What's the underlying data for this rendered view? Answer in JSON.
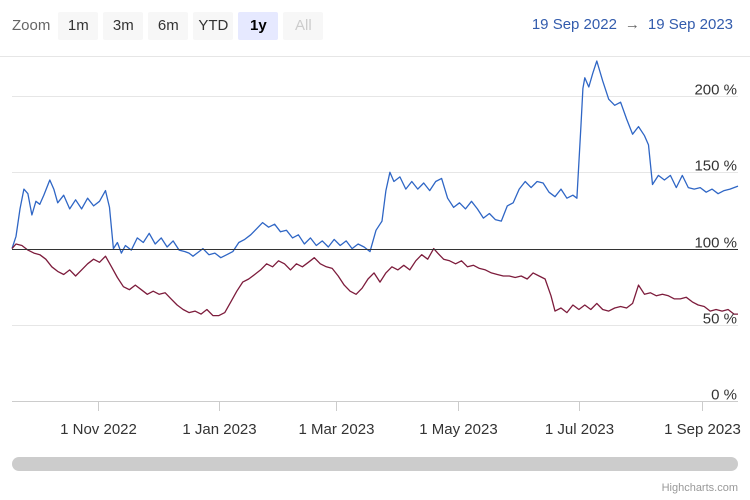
{
  "toolbar": {
    "zoom_label": "Zoom",
    "buttons": [
      {
        "label": "1m",
        "state": "normal"
      },
      {
        "label": "3m",
        "state": "normal"
      },
      {
        "label": "6m",
        "state": "normal"
      },
      {
        "label": "YTD",
        "state": "normal"
      },
      {
        "label": "1y",
        "state": "selected"
      },
      {
        "label": "All",
        "state": "disabled"
      }
    ]
  },
  "range": {
    "from": "19 Sep 2022",
    "arrow": "→",
    "to": "19 Sep 2023"
  },
  "credits": "Highcharts.com",
  "colors": {
    "series_blue": "#2f66c5",
    "series_red": "#7d1c3c",
    "grid": "#e6e6e6",
    "baseline": "#333333",
    "range_text": "#335cad"
  },
  "chart_data": {
    "type": "line",
    "y_unit": "%",
    "ylim": [
      0,
      225
    ],
    "y_ticks": [
      0,
      50,
      100,
      150,
      200
    ],
    "y_tick_labels": [
      "0 %",
      "50 %",
      "100 %",
      "150 %",
      "200 %"
    ],
    "baseline": 100,
    "xlim": [
      "2022-09-19",
      "2023-09-19"
    ],
    "x_ticks": [
      "2022-11-01",
      "2023-01-01",
      "2023-03-01",
      "2023-05-01",
      "2023-07-01",
      "2023-09-01"
    ],
    "x_tick_labels": [
      "1 Nov 2022",
      "1 Jan 2023",
      "1 Mar 2023",
      "1 May 2023",
      "1 Jul 2023",
      "1 Sep 2023"
    ],
    "grid": true,
    "legend": "none",
    "series": [
      {
        "color": "#2f66c5",
        "points": [
          [
            "2022-09-19",
            100
          ],
          [
            "2022-09-21",
            108
          ],
          [
            "2022-09-23",
            126
          ],
          [
            "2022-09-25",
            139
          ],
          [
            "2022-09-27",
            136
          ],
          [
            "2022-09-29",
            122
          ],
          [
            "2022-10-01",
            131
          ],
          [
            "2022-10-03",
            129
          ],
          [
            "2022-10-05",
            135
          ],
          [
            "2022-10-08",
            145
          ],
          [
            "2022-10-10",
            139
          ],
          [
            "2022-10-12",
            130
          ],
          [
            "2022-10-15",
            135
          ],
          [
            "2022-10-18",
            126
          ],
          [
            "2022-10-21",
            132
          ],
          [
            "2022-10-24",
            126
          ],
          [
            "2022-10-27",
            133
          ],
          [
            "2022-10-30",
            128
          ],
          [
            "2022-11-02",
            131
          ],
          [
            "2022-11-05",
            138
          ],
          [
            "2022-11-07",
            127
          ],
          [
            "2022-11-09",
            100
          ],
          [
            "2022-11-11",
            104
          ],
          [
            "2022-11-13",
            97
          ],
          [
            "2022-11-15",
            102
          ],
          [
            "2022-11-18",
            99
          ],
          [
            "2022-11-21",
            107
          ],
          [
            "2022-11-24",
            104
          ],
          [
            "2022-11-27",
            110
          ],
          [
            "2022-11-30",
            103
          ],
          [
            "2022-12-03",
            107
          ],
          [
            "2022-12-06",
            101
          ],
          [
            "2022-12-09",
            105
          ],
          [
            "2022-12-12",
            99
          ],
          [
            "2022-12-15",
            98
          ],
          [
            "2022-12-17",
            97
          ],
          [
            "2022-12-19",
            95
          ],
          [
            "2022-12-22",
            98
          ],
          [
            "2022-12-24",
            100
          ],
          [
            "2022-12-27",
            96
          ],
          [
            "2022-12-30",
            97
          ],
          [
            "2023-01-02",
            94
          ],
          [
            "2023-01-05",
            96
          ],
          [
            "2023-01-08",
            98
          ],
          [
            "2023-01-11",
            104
          ],
          [
            "2023-01-14",
            106
          ],
          [
            "2023-01-17",
            109
          ],
          [
            "2023-01-20",
            113
          ],
          [
            "2023-01-23",
            117
          ],
          [
            "2023-01-26",
            114
          ],
          [
            "2023-01-29",
            116
          ],
          [
            "2023-02-01",
            111
          ],
          [
            "2023-02-04",
            112
          ],
          [
            "2023-02-07",
            107
          ],
          [
            "2023-02-10",
            109
          ],
          [
            "2023-02-13",
            103
          ],
          [
            "2023-02-16",
            107
          ],
          [
            "2023-02-19",
            102
          ],
          [
            "2023-02-22",
            105
          ],
          [
            "2023-02-25",
            101
          ],
          [
            "2023-02-28",
            106
          ],
          [
            "2023-03-03",
            102
          ],
          [
            "2023-03-06",
            105
          ],
          [
            "2023-03-09",
            100
          ],
          [
            "2023-03-12",
            103
          ],
          [
            "2023-03-15",
            101
          ],
          [
            "2023-03-18",
            98
          ],
          [
            "2023-03-21",
            112
          ],
          [
            "2023-03-24",
            118
          ],
          [
            "2023-03-26",
            138
          ],
          [
            "2023-03-28",
            150
          ],
          [
            "2023-03-30",
            144
          ],
          [
            "2023-04-02",
            147
          ],
          [
            "2023-04-05",
            139
          ],
          [
            "2023-04-08",
            144
          ],
          [
            "2023-04-11",
            139
          ],
          [
            "2023-04-14",
            143
          ],
          [
            "2023-04-17",
            138
          ],
          [
            "2023-04-20",
            144
          ],
          [
            "2023-04-23",
            146
          ],
          [
            "2023-04-26",
            133
          ],
          [
            "2023-04-29",
            127
          ],
          [
            "2023-05-02",
            130
          ],
          [
            "2023-05-05",
            126
          ],
          [
            "2023-05-08",
            131
          ],
          [
            "2023-05-11",
            126
          ],
          [
            "2023-05-14",
            120
          ],
          [
            "2023-05-17",
            123
          ],
          [
            "2023-05-20",
            119
          ],
          [
            "2023-05-23",
            118
          ],
          [
            "2023-05-26",
            128
          ],
          [
            "2023-05-29",
            130
          ],
          [
            "2023-06-01",
            139
          ],
          [
            "2023-06-04",
            144
          ],
          [
            "2023-06-07",
            140
          ],
          [
            "2023-06-10",
            144
          ],
          [
            "2023-06-13",
            143
          ],
          [
            "2023-06-16",
            137
          ],
          [
            "2023-06-19",
            134
          ],
          [
            "2023-06-22",
            139
          ],
          [
            "2023-06-25",
            133
          ],
          [
            "2023-06-28",
            135
          ],
          [
            "2023-06-30",
            133
          ],
          [
            "2023-07-02",
            180
          ],
          [
            "2023-07-03",
            205
          ],
          [
            "2023-07-04",
            212
          ],
          [
            "2023-07-06",
            206
          ],
          [
            "2023-07-08",
            215
          ],
          [
            "2023-07-10",
            223
          ],
          [
            "2023-07-13",
            210
          ],
          [
            "2023-07-16",
            198
          ],
          [
            "2023-07-19",
            194
          ],
          [
            "2023-07-22",
            196
          ],
          [
            "2023-07-25",
            185
          ],
          [
            "2023-07-28",
            175
          ],
          [
            "2023-07-31",
            180
          ],
          [
            "2023-08-03",
            174
          ],
          [
            "2023-08-05",
            168
          ],
          [
            "2023-08-07",
            142
          ],
          [
            "2023-08-10",
            148
          ],
          [
            "2023-08-13",
            145
          ],
          [
            "2023-08-16",
            148
          ],
          [
            "2023-08-19",
            140
          ],
          [
            "2023-08-22",
            148
          ],
          [
            "2023-08-25",
            140
          ],
          [
            "2023-08-28",
            139
          ],
          [
            "2023-08-31",
            140
          ],
          [
            "2023-09-03",
            137
          ],
          [
            "2023-09-06",
            139
          ],
          [
            "2023-09-09",
            136
          ],
          [
            "2023-09-12",
            138
          ],
          [
            "2023-09-15",
            139
          ],
          [
            "2023-09-19",
            141
          ]
        ]
      },
      {
        "color": "#7d1c3c",
        "points": [
          [
            "2022-09-19",
            100
          ],
          [
            "2022-09-21",
            103
          ],
          [
            "2022-09-24",
            102
          ],
          [
            "2022-09-27",
            99
          ],
          [
            "2022-09-30",
            97
          ],
          [
            "2022-10-03",
            96
          ],
          [
            "2022-10-06",
            93
          ],
          [
            "2022-10-09",
            88
          ],
          [
            "2022-10-12",
            85
          ],
          [
            "2022-10-15",
            83
          ],
          [
            "2022-10-18",
            86
          ],
          [
            "2022-10-21",
            82
          ],
          [
            "2022-10-24",
            86
          ],
          [
            "2022-10-27",
            90
          ],
          [
            "2022-10-30",
            93
          ],
          [
            "2022-11-02",
            91
          ],
          [
            "2022-11-05",
            95
          ],
          [
            "2022-11-08",
            88
          ],
          [
            "2022-11-11",
            81
          ],
          [
            "2022-11-14",
            75
          ],
          [
            "2022-11-17",
            73
          ],
          [
            "2022-11-20",
            76
          ],
          [
            "2022-11-23",
            73
          ],
          [
            "2022-11-26",
            70
          ],
          [
            "2022-11-29",
            72
          ],
          [
            "2022-12-02",
            70
          ],
          [
            "2022-12-05",
            71
          ],
          [
            "2022-12-08",
            67
          ],
          [
            "2022-12-11",
            63
          ],
          [
            "2022-12-14",
            60
          ],
          [
            "2022-12-17",
            58
          ],
          [
            "2022-12-20",
            59
          ],
          [
            "2022-12-23",
            57
          ],
          [
            "2022-12-26",
            60
          ],
          [
            "2022-12-29",
            56
          ],
          [
            "2023-01-01",
            56
          ],
          [
            "2023-01-04",
            58
          ],
          [
            "2023-01-07",
            65
          ],
          [
            "2023-01-10",
            72
          ],
          [
            "2023-01-13",
            78
          ],
          [
            "2023-01-16",
            80
          ],
          [
            "2023-01-19",
            83
          ],
          [
            "2023-01-22",
            86
          ],
          [
            "2023-01-25",
            90
          ],
          [
            "2023-01-28",
            88
          ],
          [
            "2023-01-31",
            92
          ],
          [
            "2023-02-03",
            90
          ],
          [
            "2023-02-06",
            86
          ],
          [
            "2023-02-09",
            90
          ],
          [
            "2023-02-12",
            88
          ],
          [
            "2023-02-15",
            91
          ],
          [
            "2023-02-18",
            94
          ],
          [
            "2023-02-21",
            90
          ],
          [
            "2023-02-24",
            88
          ],
          [
            "2023-02-27",
            87
          ],
          [
            "2023-03-02",
            82
          ],
          [
            "2023-03-05",
            76
          ],
          [
            "2023-03-08",
            72
          ],
          [
            "2023-03-11",
            70
          ],
          [
            "2023-03-14",
            74
          ],
          [
            "2023-03-17",
            80
          ],
          [
            "2023-03-20",
            84
          ],
          [
            "2023-03-23",
            78
          ],
          [
            "2023-03-26",
            84
          ],
          [
            "2023-03-29",
            88
          ],
          [
            "2023-04-01",
            86
          ],
          [
            "2023-04-04",
            89
          ],
          [
            "2023-04-07",
            86
          ],
          [
            "2023-04-10",
            92
          ],
          [
            "2023-04-13",
            96
          ],
          [
            "2023-04-16",
            93
          ],
          [
            "2023-04-19",
            100
          ],
          [
            "2023-04-21",
            97
          ],
          [
            "2023-04-24",
            93
          ],
          [
            "2023-04-27",
            92
          ],
          [
            "2023-04-30",
            90
          ],
          [
            "2023-05-03",
            92
          ],
          [
            "2023-05-06",
            88
          ],
          [
            "2023-05-09",
            89
          ],
          [
            "2023-05-12",
            87
          ],
          [
            "2023-05-15",
            86
          ],
          [
            "2023-05-18",
            84
          ],
          [
            "2023-05-21",
            83
          ],
          [
            "2023-05-24",
            82
          ],
          [
            "2023-05-27",
            82
          ],
          [
            "2023-05-30",
            81
          ],
          [
            "2023-06-02",
            82
          ],
          [
            "2023-06-05",
            80
          ],
          [
            "2023-06-08",
            84
          ],
          [
            "2023-06-11",
            82
          ],
          [
            "2023-06-14",
            80
          ],
          [
            "2023-06-17",
            69
          ],
          [
            "2023-06-19",
            59
          ],
          [
            "2023-06-22",
            61
          ],
          [
            "2023-06-25",
            58
          ],
          [
            "2023-06-28",
            63
          ],
          [
            "2023-07-01",
            60
          ],
          [
            "2023-07-04",
            63
          ],
          [
            "2023-07-07",
            60
          ],
          [
            "2023-07-10",
            64
          ],
          [
            "2023-07-13",
            60
          ],
          [
            "2023-07-16",
            59
          ],
          [
            "2023-07-19",
            61
          ],
          [
            "2023-07-22",
            62
          ],
          [
            "2023-07-25",
            61
          ],
          [
            "2023-07-28",
            64
          ],
          [
            "2023-07-31",
            76
          ],
          [
            "2023-08-03",
            70
          ],
          [
            "2023-08-06",
            71
          ],
          [
            "2023-08-09",
            69
          ],
          [
            "2023-08-12",
            70
          ],
          [
            "2023-08-15",
            69
          ],
          [
            "2023-08-18",
            67
          ],
          [
            "2023-08-21",
            67
          ],
          [
            "2023-08-24",
            68
          ],
          [
            "2023-08-27",
            65
          ],
          [
            "2023-08-30",
            63
          ],
          [
            "2023-09-02",
            62
          ],
          [
            "2023-09-05",
            59
          ],
          [
            "2023-09-08",
            60
          ],
          [
            "2023-09-11",
            59
          ],
          [
            "2023-09-14",
            60
          ],
          [
            "2023-09-17",
            57
          ],
          [
            "2023-09-19",
            57
          ]
        ]
      }
    ]
  }
}
